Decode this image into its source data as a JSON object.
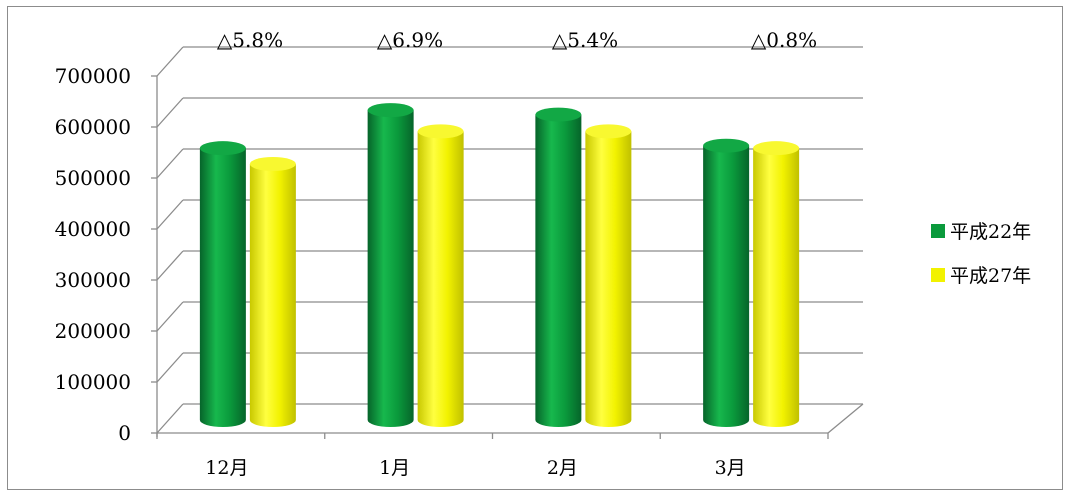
{
  "chart_data": {
    "type": "bar",
    "style": "3d-cylinder",
    "categories": [
      "12月",
      "1月",
      "2月",
      "3月"
    ],
    "series": [
      {
        "name": "平成22年",
        "color": "#0a9a3c",
        "values": [
          550000,
          627000,
          618000,
          555000
        ]
      },
      {
        "name": "平成27年",
        "color": "#f2f200",
        "values": [
          518000,
          584000,
          584000,
          550000
        ]
      }
    ],
    "annotations": [
      "△5.8%",
      "△6.9%",
      "△5.4%",
      "△0.8%"
    ],
    "ylim": [
      0,
      700000
    ],
    "yticks": [
      "0",
      "100000",
      "200000",
      "300000",
      "400000",
      "500000",
      "600000",
      "700000"
    ],
    "grid": true,
    "legend_position": "right"
  }
}
